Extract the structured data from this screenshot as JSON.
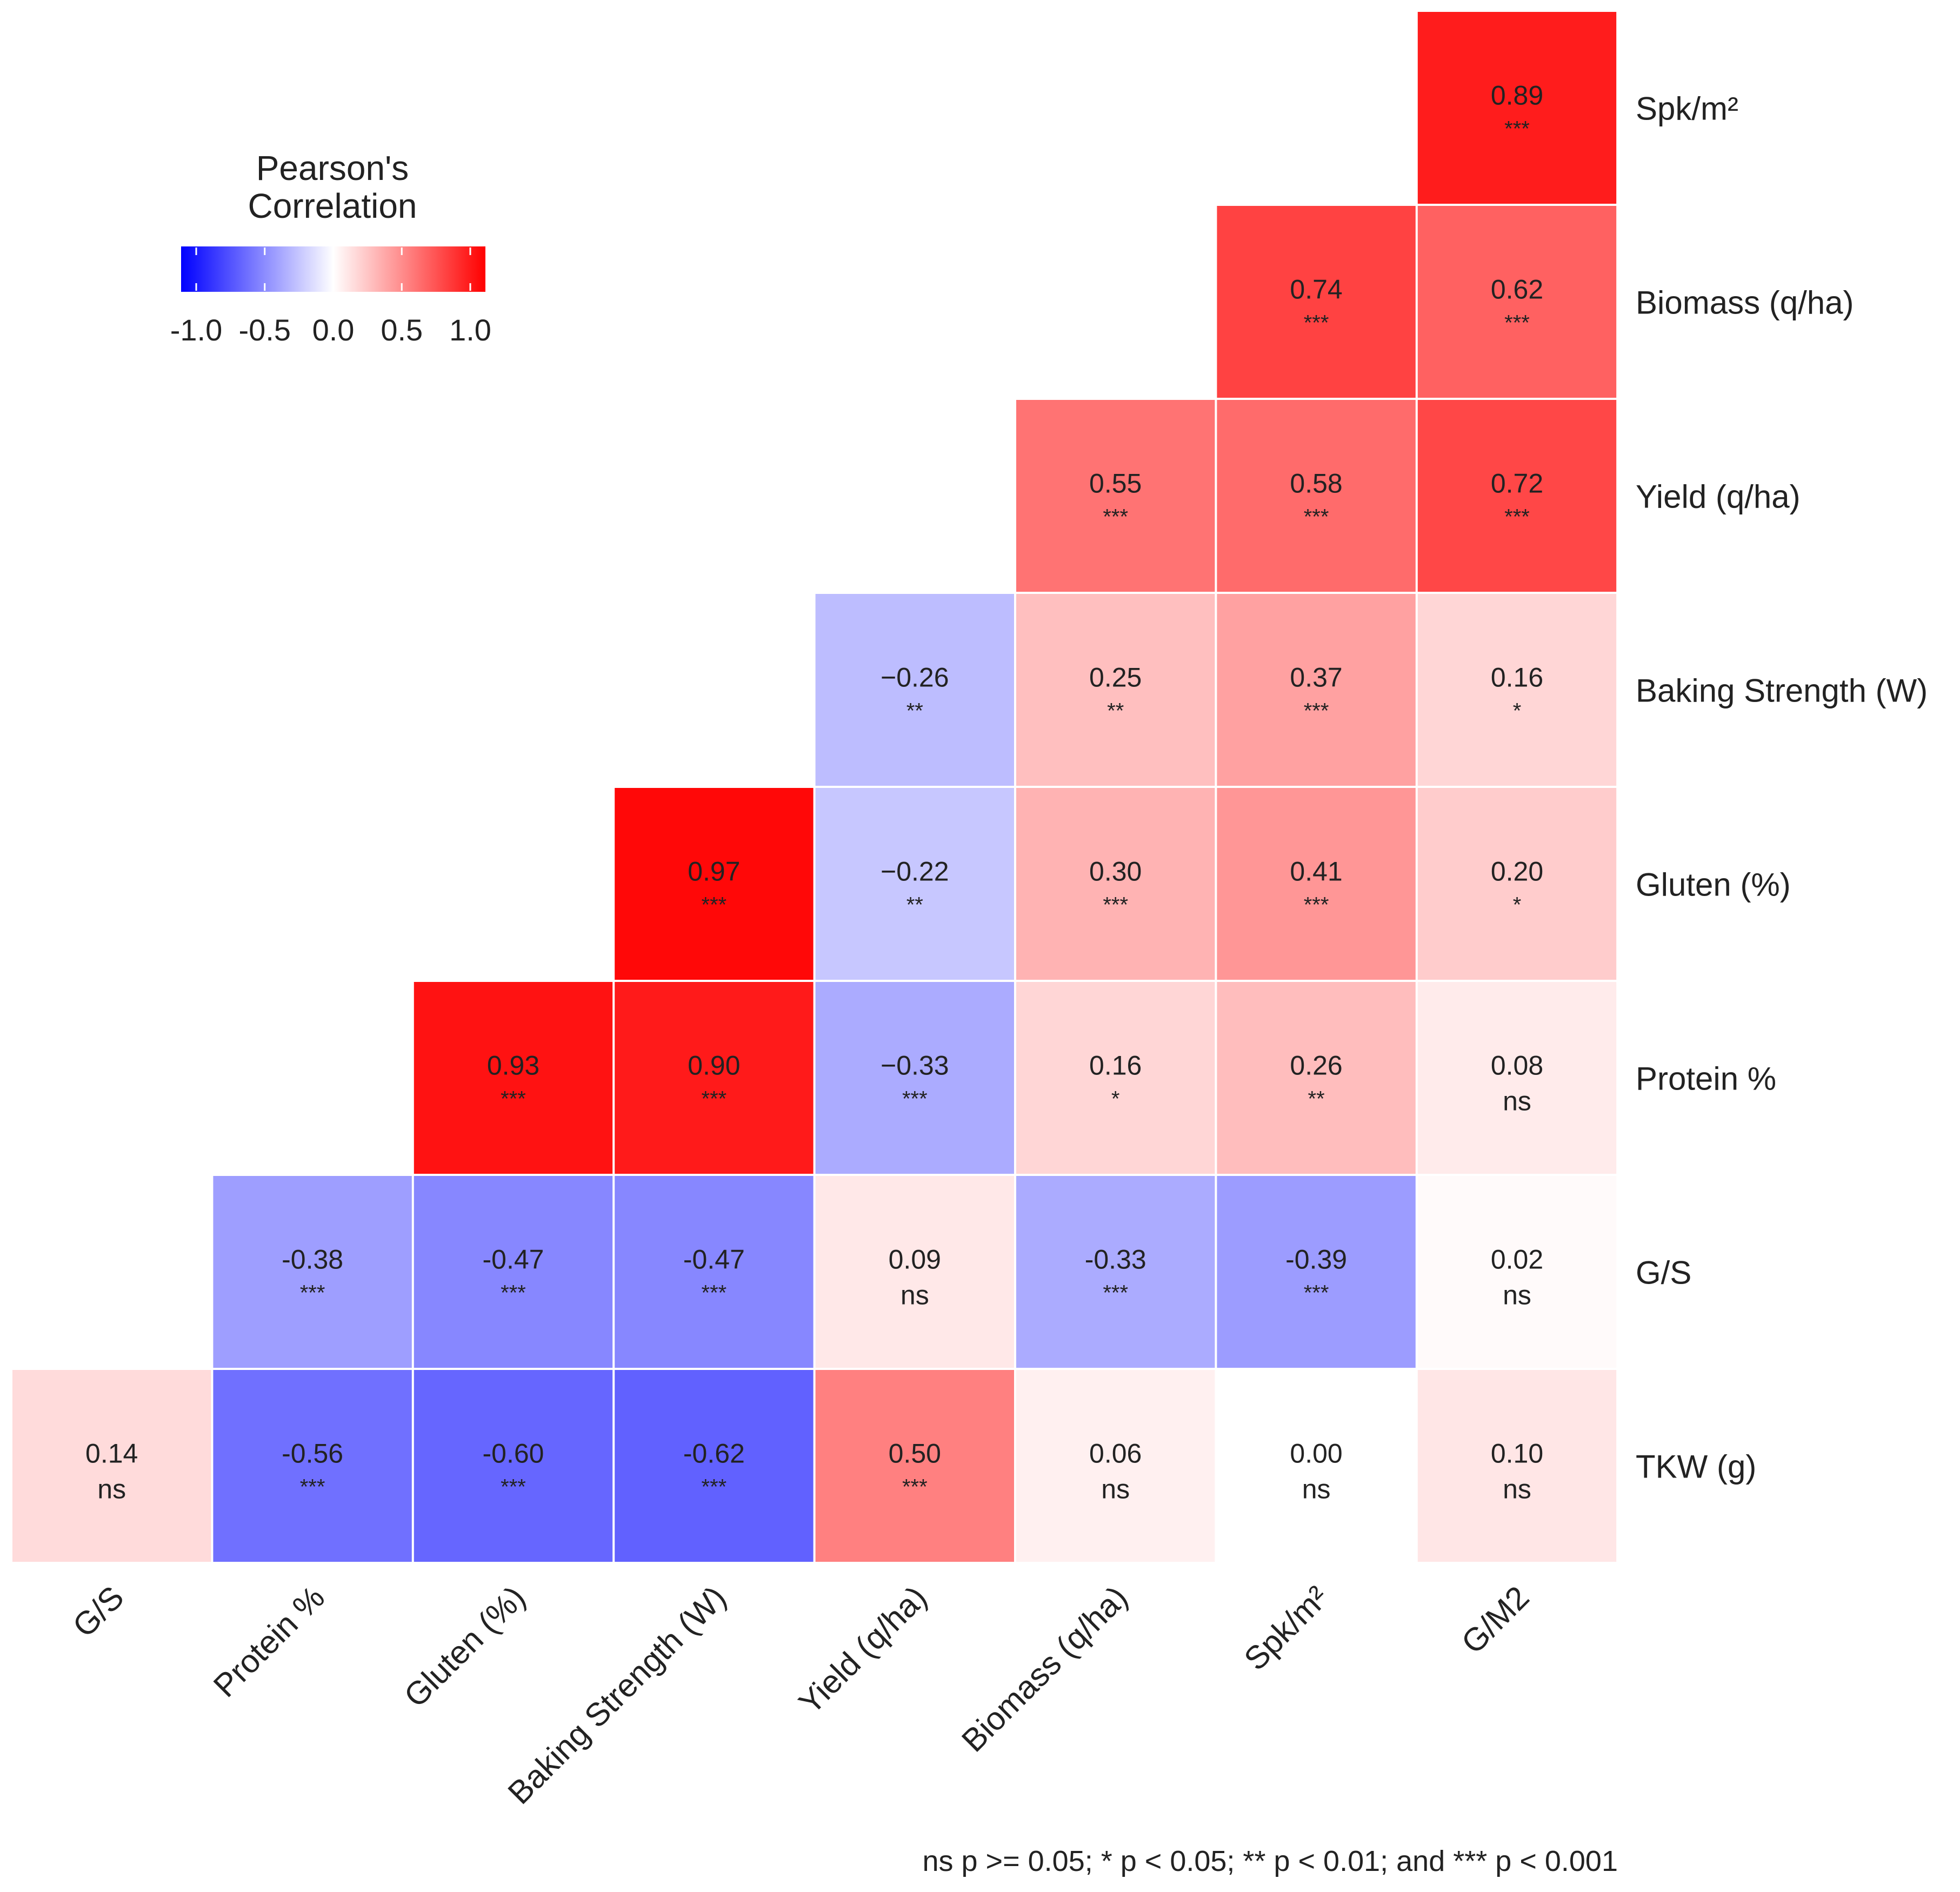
{
  "chart_data": {
    "type": "heatmap",
    "x_categories": [
      "G/S",
      "Protein %",
      "Gluten (%)",
      "Baking Strength (W)",
      "Yield (q/ha)",
      "Biomass (q/ha)",
      "Spk/m²",
      "G/M2"
    ],
    "y_categories": [
      "Spk/m²",
      "Biomass (q/ha)",
      "Yield (q/ha)",
      "Baking Strength (W)",
      "Gluten (%)",
      "Protein %",
      "G/S",
      "TKW (g)"
    ],
    "cells": [
      {
        "x": "G/M2",
        "y": "Spk/m²",
        "value": 0.89,
        "label": "0.89",
        "sig": "***"
      },
      {
        "x": "Spk/m²",
        "y": "Biomass (q/ha)",
        "value": 0.74,
        "label": "0.74",
        "sig": "***"
      },
      {
        "x": "G/M2",
        "y": "Biomass (q/ha)",
        "value": 0.62,
        "label": "0.62",
        "sig": "***"
      },
      {
        "x": "Biomass (q/ha)",
        "y": "Yield (q/ha)",
        "value": 0.55,
        "label": "0.55",
        "sig": "***"
      },
      {
        "x": "Spk/m²",
        "y": "Yield (q/ha)",
        "value": 0.58,
        "label": "0.58",
        "sig": "***"
      },
      {
        "x": "G/M2",
        "y": "Yield (q/ha)",
        "value": 0.72,
        "label": "0.72",
        "sig": "***"
      },
      {
        "x": "Yield (q/ha)",
        "y": "Baking Strength (W)",
        "value": -0.26,
        "label": "−0.26",
        "sig": "**"
      },
      {
        "x": "Biomass (q/ha)",
        "y": "Baking Strength (W)",
        "value": 0.25,
        "label": "0.25",
        "sig": "**"
      },
      {
        "x": "Spk/m²",
        "y": "Baking Strength (W)",
        "value": 0.37,
        "label": "0.37",
        "sig": "***"
      },
      {
        "x": "G/M2",
        "y": "Baking Strength (W)",
        "value": 0.16,
        "label": "0.16",
        "sig": "*"
      },
      {
        "x": "Baking Strength (W)",
        "y": "Gluten (%)",
        "value": 0.97,
        "label": "0.97",
        "sig": "***"
      },
      {
        "x": "Yield (q/ha)",
        "y": "Gluten (%)",
        "value": -0.22,
        "label": "−0.22",
        "sig": "**"
      },
      {
        "x": "Biomass (q/ha)",
        "y": "Gluten (%)",
        "value": 0.3,
        "label": "0.30",
        "sig": "***"
      },
      {
        "x": "Spk/m²",
        "y": "Gluten (%)",
        "value": 0.41,
        "label": "0.41",
        "sig": "***"
      },
      {
        "x": "G/M2",
        "y": "Gluten (%)",
        "value": 0.2,
        "label": "0.20",
        "sig": "*"
      },
      {
        "x": "Gluten (%)",
        "y": "Protein %",
        "value": 0.93,
        "label": "0.93",
        "sig": "***"
      },
      {
        "x": "Baking Strength (W)",
        "y": "Protein %",
        "value": 0.9,
        "label": "0.90",
        "sig": "***"
      },
      {
        "x": "Yield (q/ha)",
        "y": "Protein %",
        "value": -0.33,
        "label": "−0.33",
        "sig": "***"
      },
      {
        "x": "Biomass (q/ha)",
        "y": "Protein %",
        "value": 0.16,
        "label": "0.16",
        "sig": "*"
      },
      {
        "x": "Spk/m²",
        "y": "Protein %",
        "value": 0.26,
        "label": "0.26",
        "sig": "**"
      },
      {
        "x": "G/M2",
        "y": "Protein %",
        "value": 0.08,
        "label": "0.08",
        "sig": "ns"
      },
      {
        "x": "Protein %",
        "y": "G/S",
        "value": -0.38,
        "label": "-0.38",
        "sig": "***"
      },
      {
        "x": "Gluten (%)",
        "y": "G/S",
        "value": -0.47,
        "label": "-0.47",
        "sig": "***"
      },
      {
        "x": "Baking Strength (W)",
        "y": "G/S",
        "value": -0.47,
        "label": "-0.47",
        "sig": "***"
      },
      {
        "x": "Yield (q/ha)",
        "y": "G/S",
        "value": 0.09,
        "label": "0.09",
        "sig": "ns"
      },
      {
        "x": "Biomass (q/ha)",
        "y": "G/S",
        "value": -0.33,
        "label": "-0.33",
        "sig": "***"
      },
      {
        "x": "Spk/m²",
        "y": "G/S",
        "value": -0.39,
        "label": "-0.39",
        "sig": "***"
      },
      {
        "x": "G/M2",
        "y": "G/S",
        "value": 0.02,
        "label": "0.02",
        "sig": "ns"
      },
      {
        "x": "G/S",
        "y": "TKW (g)",
        "value": 0.14,
        "label": "0.14",
        "sig": "ns"
      },
      {
        "x": "Protein %",
        "y": "TKW (g)",
        "value": -0.56,
        "label": "-0.56",
        "sig": "***"
      },
      {
        "x": "Gluten (%)",
        "y": "TKW (g)",
        "value": -0.6,
        "label": "-0.60",
        "sig": "***"
      },
      {
        "x": "Baking Strength (W)",
        "y": "TKW (g)",
        "value": -0.62,
        "label": "-0.62",
        "sig": "***"
      },
      {
        "x": "Yield (q/ha)",
        "y": "TKW (g)",
        "value": 0.5,
        "label": "0.50",
        "sig": "***"
      },
      {
        "x": "Biomass (q/ha)",
        "y": "TKW (g)",
        "value": 0.06,
        "label": "0.06",
        "sig": "ns"
      },
      {
        "x": "Spk/m²",
        "y": "TKW (g)",
        "value": 0.0,
        "label": "0.00",
        "sig": "ns"
      },
      {
        "x": "G/M2",
        "y": "TKW (g)",
        "value": 0.1,
        "label": "0.10",
        "sig": "ns"
      }
    ],
    "legend": {
      "title_lines": [
        "Pearson's",
        "Correlation"
      ],
      "ticks": [
        -1.0,
        -0.5,
        0.0,
        0.5,
        1.0
      ],
      "tick_labels": [
        "-1.0",
        "-0.5",
        "0.0",
        "0.5",
        "1.0"
      ],
      "range": [
        -1,
        1
      ],
      "placement": "top-left"
    },
    "color_scale": {
      "low": "#0000ff",
      "mid": "#ffffff",
      "high": "#ff0000"
    },
    "footnote": "ns p >= 0.05; * p < 0.05; ** p < 0.01; and *** p < 0.001",
    "grid": false
  }
}
